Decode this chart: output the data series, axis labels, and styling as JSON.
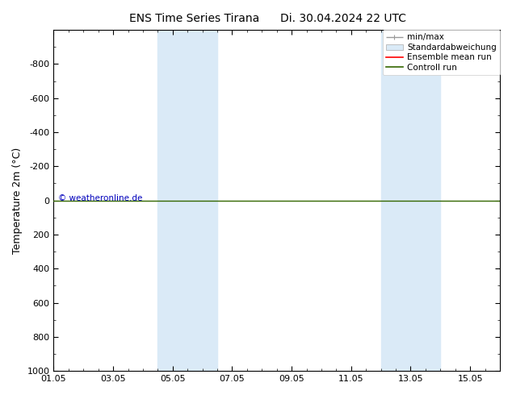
{
  "title": "ENS Time Series Tirana",
  "title2": "Di. 30.04.2024 22 UTC",
  "ylabel": "Temperature 2m (°C)",
  "ylim_top": -1000,
  "ylim_bottom": 1000,
  "yticks": [
    -800,
    -600,
    -400,
    -200,
    0,
    200,
    400,
    600,
    800,
    1000
  ],
  "xtick_labels": [
    "01.05",
    "03.05",
    "05.05",
    "07.05",
    "09.05",
    "11.05",
    "13.05",
    "15.05"
  ],
  "xtick_positions": [
    0,
    2,
    4,
    6,
    8,
    10,
    12,
    14
  ],
  "xlim": [
    0,
    15
  ],
  "shaded_bands": [
    {
      "x_start": 3.5,
      "x_end": 4.5,
      "color": "#daeaf7"
    },
    {
      "x_start": 4.5,
      "x_end": 5.5,
      "color": "#daeaf7"
    },
    {
      "x_start": 11.0,
      "x_end": 12.0,
      "color": "#daeaf7"
    },
    {
      "x_start": 12.0,
      "x_end": 13.0,
      "color": "#daeaf7"
    }
  ],
  "green_line_y": 0,
  "green_line_color": "#336600",
  "copyright_text": "© weatheronline.de",
  "copyright_color": "#0000bb",
  "legend_items": [
    {
      "label": "min/max",
      "color": "#999999"
    },
    {
      "label": "Standardabweichung",
      "color": "#c8dff0"
    },
    {
      "label": "Ensemble mean run",
      "color": "#ff0000"
    },
    {
      "label": "Controll run",
      "color": "#336600"
    }
  ],
  "bg_color": "#ffffff",
  "title_fontsize": 10,
  "tick_fontsize": 8,
  "ylabel_fontsize": 9,
  "legend_fontsize": 7.5
}
